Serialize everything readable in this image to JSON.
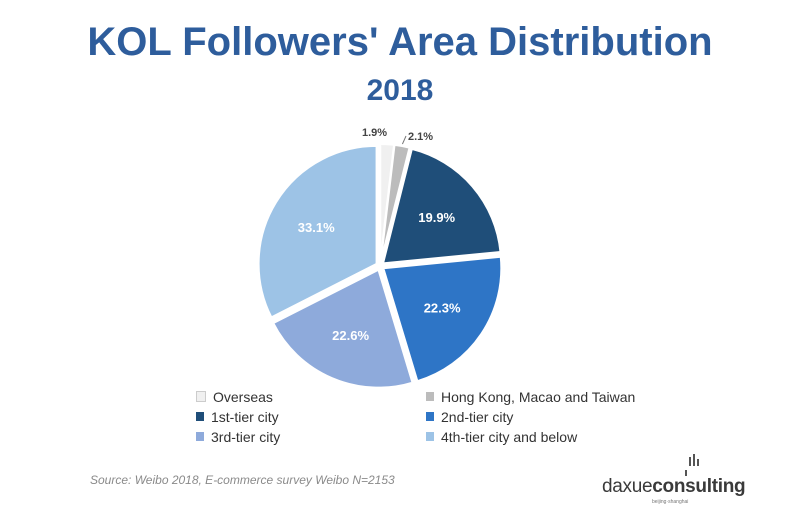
{
  "header": {
    "title": "KOL Followers' Area Distribution",
    "subtitle": "2018"
  },
  "chart_data": {
    "type": "pie",
    "title": "KOL Followers' Area Distribution",
    "subtitle": "2018",
    "slices": [
      {
        "name": "Overseas",
        "value": 1.9,
        "label": "1.9%",
        "color": "#f0f0f0"
      },
      {
        "name": "Hong Kong, Macao and Taiwan",
        "value": 2.1,
        "label": "2.1%",
        "color": "#bcbcbc"
      },
      {
        "name": "1st-tier city",
        "value": 19.9,
        "label": "19.9%",
        "color": "#1f4e79"
      },
      {
        "name": "2nd-tier city",
        "value": 22.3,
        "label": "22.3%",
        "color": "#2e75c6"
      },
      {
        "name": "3rd-tier city",
        "value": 22.6,
        "label": "22.6%",
        "color": "#8eaadb"
      },
      {
        "name": "4th-tier city and below",
        "value": 33.1,
        "label": "33.1%",
        "color": "#9dc3e6"
      }
    ],
    "legend_position": "bottom"
  },
  "footer": {
    "source": "Source: Weibo 2018, E-commerce survey Weibo N=2153",
    "logo_text_regular": "daxue",
    "logo_text_bold": "consulting",
    "logo_tagline": "beijing·shanghai"
  }
}
